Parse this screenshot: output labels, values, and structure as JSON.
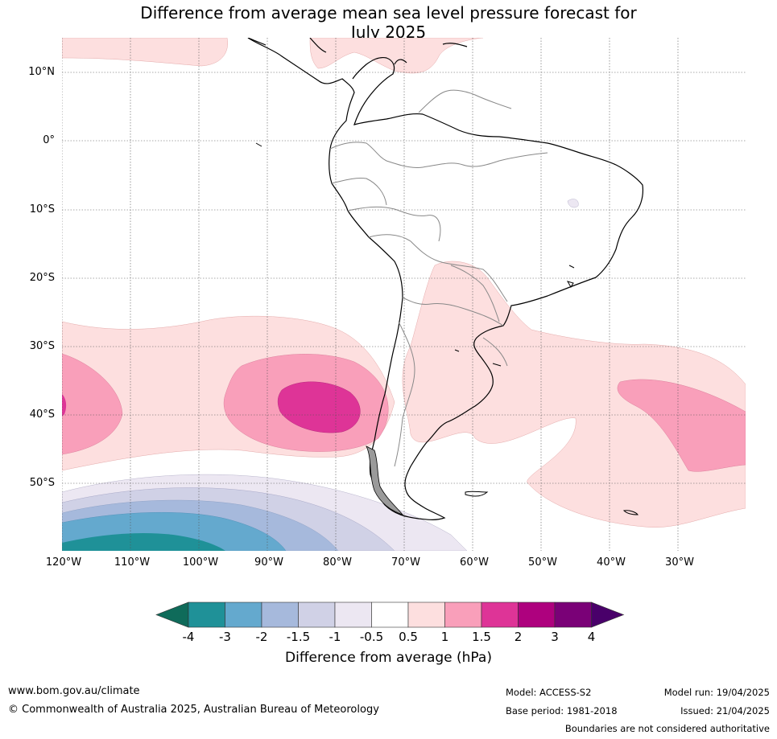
{
  "title_line1": "Difference from average mean sea level pressure forecast for",
  "title_line2": "July 2025",
  "lat_labels": [
    "10°N",
    "0°",
    "10°S",
    "20°S",
    "30°S",
    "40°S",
    "50°S"
  ],
  "lon_labels": [
    "120°W",
    "110°W",
    "100°W",
    "90°W",
    "80°W",
    "70°W",
    "60°W",
    "50°W",
    "40°W",
    "30°W"
  ],
  "colorbar": {
    "ticks": [
      "-4",
      "-3",
      "-2",
      "-1.5",
      "-1",
      "-0.5",
      "0.5",
      "1",
      "1.5",
      "2",
      "3",
      "4"
    ],
    "colors": [
      "#0f6b5a",
      "#1f9198",
      "#64a9ce",
      "#a6b9dc",
      "#d0d1e6",
      "#ece7f2",
      "#ffffff",
      "#fddfdf",
      "#f99fba",
      "#de3497",
      "#ae017e",
      "#7a0177",
      "#49006a"
    ],
    "label": "Difference from average (hPa)"
  },
  "footer": {
    "url": "www.bom.gov.au/climate",
    "copyright": "© Commonwealth of Australia 2025, Australian Bureau of Meteorology",
    "model": "Model: ACCESS-S2",
    "base_period": "Base period: 1981-2018",
    "model_run": "Model run: 19/04/2025",
    "issued": "Issued: 21/04/2025",
    "disclaimer": "Boundaries are not considered authoritative"
  }
}
